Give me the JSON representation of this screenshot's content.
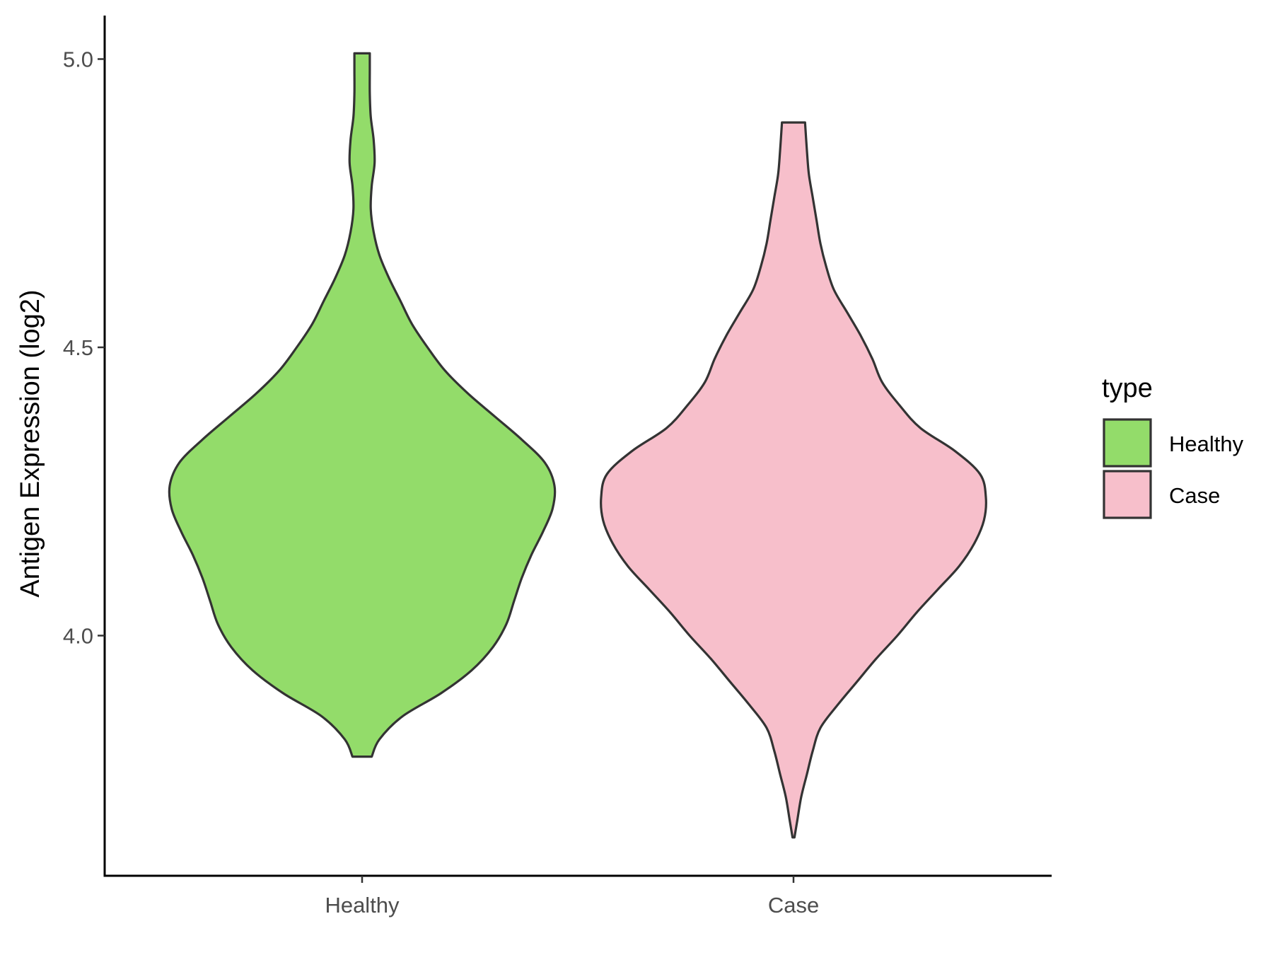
{
  "chart_data": {
    "type": "violin",
    "title": "",
    "xlabel": "",
    "ylabel": "Antigen Expression (log2)",
    "ylim": [
      3.6,
      5.07
    ],
    "yticks": [
      4.0,
      4.5,
      5.0
    ],
    "ytick_labels": [
      "4.0",
      "4.5",
      "5.0"
    ],
    "categories": [
      "Healthy",
      "Case"
    ],
    "grid": false,
    "legend": {
      "title": "type",
      "position": "right",
      "items": [
        {
          "label": "Healthy",
          "color": "#93dc6a"
        },
        {
          "label": "Case",
          "color": "#f7bfcb"
        }
      ]
    },
    "series": [
      {
        "category": "Healthy",
        "color": "#93dc6a",
        "min": 3.79,
        "max": 5.01,
        "density_profile": [
          [
            3.79,
            0.05
          ],
          [
            3.82,
            0.09
          ],
          [
            3.86,
            0.21
          ],
          [
            3.9,
            0.41
          ],
          [
            3.94,
            0.57
          ],
          [
            3.98,
            0.68
          ],
          [
            4.02,
            0.75
          ],
          [
            4.06,
            0.79
          ],
          [
            4.1,
            0.83
          ],
          [
            4.14,
            0.88
          ],
          [
            4.18,
            0.94
          ],
          [
            4.22,
            0.99
          ],
          [
            4.26,
            1.0
          ],
          [
            4.3,
            0.95
          ],
          [
            4.34,
            0.83
          ],
          [
            4.38,
            0.69
          ],
          [
            4.42,
            0.55
          ],
          [
            4.46,
            0.43
          ],
          [
            4.5,
            0.34
          ],
          [
            4.54,
            0.26
          ],
          [
            4.58,
            0.2
          ],
          [
            4.62,
            0.14
          ],
          [
            4.66,
            0.09
          ],
          [
            4.7,
            0.06
          ],
          [
            4.74,
            0.045
          ],
          [
            4.78,
            0.05
          ],
          [
            4.82,
            0.065
          ],
          [
            4.86,
            0.06
          ],
          [
            4.9,
            0.045
          ],
          [
            4.94,
            0.04
          ],
          [
            4.98,
            0.04
          ],
          [
            5.01,
            0.04
          ]
        ]
      },
      {
        "category": "Case",
        "color": "#f7bfcb",
        "min": 3.65,
        "max": 4.89,
        "density_profile": [
          [
            3.65,
            0.005
          ],
          [
            3.68,
            0.02
          ],
          [
            3.72,
            0.04
          ],
          [
            3.76,
            0.07
          ],
          [
            3.8,
            0.1
          ],
          [
            3.84,
            0.14
          ],
          [
            3.88,
            0.23
          ],
          [
            3.92,
            0.33
          ],
          [
            3.96,
            0.43
          ],
          [
            4.0,
            0.54
          ],
          [
            4.04,
            0.64
          ],
          [
            4.08,
            0.75
          ],
          [
            4.12,
            0.86
          ],
          [
            4.16,
            0.94
          ],
          [
            4.2,
            0.99
          ],
          [
            4.24,
            1.0
          ],
          [
            4.28,
            0.97
          ],
          [
            4.32,
            0.84
          ],
          [
            4.36,
            0.66
          ],
          [
            4.4,
            0.55
          ],
          [
            4.44,
            0.46
          ],
          [
            4.48,
            0.41
          ],
          [
            4.52,
            0.35
          ],
          [
            4.56,
            0.28
          ],
          [
            4.6,
            0.21
          ],
          [
            4.64,
            0.17
          ],
          [
            4.68,
            0.14
          ],
          [
            4.72,
            0.12
          ],
          [
            4.76,
            0.1
          ],
          [
            4.8,
            0.08
          ],
          [
            4.84,
            0.07
          ],
          [
            4.89,
            0.06
          ]
        ]
      }
    ]
  }
}
